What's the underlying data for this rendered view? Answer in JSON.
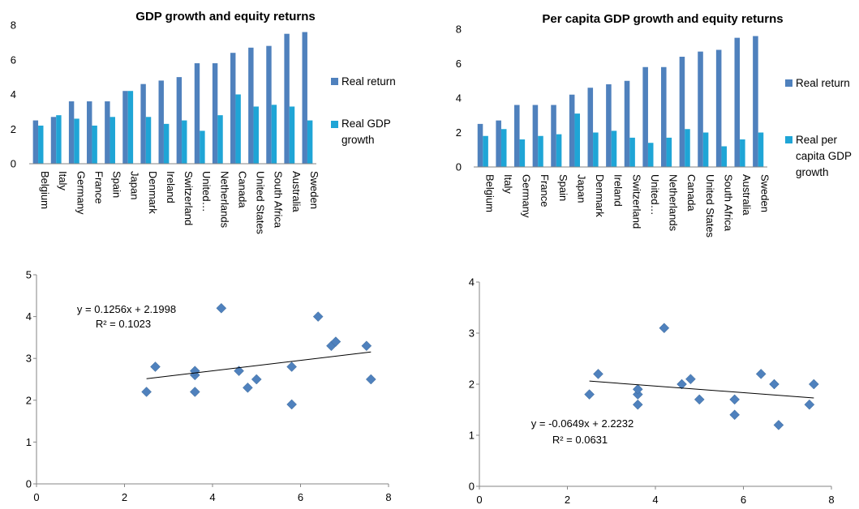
{
  "chart_data": [
    {
      "type": "bar",
      "title": "GDP growth and equity returns",
      "categories": [
        "Belgium",
        "Italy",
        "Germany",
        "France",
        "Spain",
        "Japan",
        "Denmark",
        "Ireland",
        "Switzerland",
        "United…",
        "Netherlands",
        "Canada",
        "United States",
        "South Africa",
        "Australia",
        "Sweden"
      ],
      "series": [
        {
          "name": "Real return",
          "color": "#4f81bd",
          "values": [
            2.5,
            2.7,
            3.6,
            3.6,
            3.6,
            4.2,
            4.6,
            4.8,
            5.0,
            5.8,
            5.8,
            6.4,
            6.7,
            6.8,
            7.5,
            7.6
          ]
        },
        {
          "name": "Real GDP growth",
          "color": "#1fa5d6",
          "values": [
            2.2,
            2.8,
            2.6,
            2.2,
            2.7,
            4.2,
            2.7,
            2.3,
            2.5,
            1.9,
            2.8,
            4.0,
            3.3,
            3.4,
            3.3,
            2.5
          ]
        }
      ],
      "ylim": [
        0,
        8
      ],
      "yticks": [
        "0",
        "2",
        "4",
        "6",
        "8"
      ],
      "legend": "right"
    },
    {
      "type": "bar",
      "title": "Per capita GDP growth and equity returns",
      "categories": [
        "Belgium",
        "Italy",
        "Germany",
        "France",
        "Spain",
        "Japan",
        "Denmark",
        "Ireland",
        "Switzerland",
        "United…",
        "Netherlands",
        "Canada",
        "United States",
        "South Africa",
        "Australia",
        "Sweden"
      ],
      "series": [
        {
          "name": "Real return",
          "color": "#4f81bd",
          "values": [
            2.5,
            2.7,
            3.6,
            3.6,
            3.6,
            4.2,
            4.6,
            4.8,
            5.0,
            5.8,
            5.8,
            6.4,
            6.7,
            6.8,
            7.5,
            7.6
          ]
        },
        {
          "name": "Real per capita GDP growth",
          "color": "#1fa5d6",
          "values": [
            1.8,
            2.2,
            1.6,
            1.8,
            1.9,
            3.1,
            2.0,
            2.1,
            1.7,
            1.4,
            1.7,
            2.2,
            2.0,
            1.2,
            1.6,
            2.0
          ]
        }
      ],
      "legend_lines": [
        [
          "Real return"
        ],
        [
          "Real per",
          "capita GDP",
          "growth"
        ]
      ],
      "ylim": [
        0,
        8
      ],
      "yticks": [
        "0",
        "2",
        "4",
        "6",
        "8"
      ],
      "legend": "right"
    },
    {
      "type": "scatter",
      "points": [
        [
          2.5,
          2.2
        ],
        [
          2.7,
          2.8
        ],
        [
          3.6,
          2.6
        ],
        [
          3.6,
          2.7
        ],
        [
          3.6,
          2.2
        ],
        [
          4.2,
          4.2
        ],
        [
          4.6,
          2.7
        ],
        [
          4.8,
          2.3
        ],
        [
          5.0,
          2.5
        ],
        [
          5.8,
          1.9
        ],
        [
          5.8,
          2.8
        ],
        [
          6.4,
          4.0
        ],
        [
          6.7,
          3.3
        ],
        [
          6.8,
          3.4
        ],
        [
          7.5,
          3.3
        ],
        [
          7.6,
          2.5
        ]
      ],
      "trendline": {
        "slope": 0.1256,
        "intercept": 2.1998,
        "from": 2.5,
        "to": 7.6
      },
      "equation": "y = 0.1256x + 2.1998",
      "r_squared": "R² = 0.1023",
      "xlim": [
        0,
        8
      ],
      "ylim": [
        0,
        5
      ],
      "xticks": [
        "0",
        "2",
        "4",
        "6",
        "8"
      ],
      "yticks": [
        "0",
        "1",
        "2",
        "3",
        "4",
        "5"
      ],
      "color": "#4f81bd"
    },
    {
      "type": "scatter",
      "points": [
        [
          2.5,
          1.8
        ],
        [
          2.7,
          2.2
        ],
        [
          3.6,
          1.6
        ],
        [
          3.6,
          1.8
        ],
        [
          3.6,
          1.9
        ],
        [
          4.2,
          3.1
        ],
        [
          4.6,
          2.0
        ],
        [
          4.8,
          2.1
        ],
        [
          5.0,
          1.7
        ],
        [
          5.8,
          1.4
        ],
        [
          5.8,
          1.7
        ],
        [
          6.4,
          2.2
        ],
        [
          6.7,
          2.0
        ],
        [
          6.8,
          1.2
        ],
        [
          7.5,
          1.6
        ],
        [
          7.6,
          2.0
        ]
      ],
      "trendline": {
        "slope": -0.0649,
        "intercept": 2.2232,
        "from": 2.5,
        "to": 7.6
      },
      "equation": "y = -0.0649x + 2.2232",
      "r_squared": "R² = 0.0631",
      "xlim": [
        0,
        8
      ],
      "ylim": [
        0,
        4
      ],
      "xticks": [
        "0",
        "2",
        "4",
        "6",
        "8"
      ],
      "yticks": [
        "0",
        "1",
        "2",
        "3",
        "4"
      ],
      "color": "#4f81bd"
    }
  ]
}
